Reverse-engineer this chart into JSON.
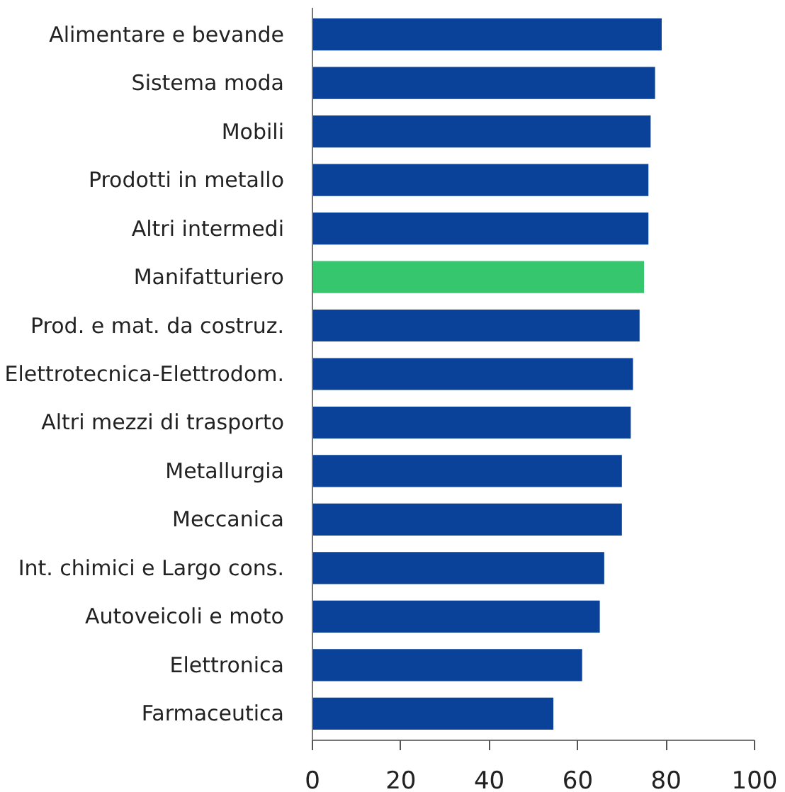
{
  "chart_data": {
    "type": "bar",
    "orientation": "horizontal",
    "categories": [
      "Alimentare e bevande",
      "Sistema moda",
      "Mobili",
      "Prodotti in metallo",
      "Altri intermedi",
      "Manifatturiero",
      "Prod. e mat. da costruz.",
      "Elettrotecnica-Elettrodom.",
      "Altri mezzi di trasporto",
      "Metallurgia",
      "Meccanica",
      "Int. chimici e Largo cons.",
      "Autoveicoli e moto",
      "Elettronica",
      "Farmaceutica"
    ],
    "values": [
      79,
      77.5,
      76.5,
      76,
      76,
      75,
      74,
      72.5,
      72,
      70,
      70,
      66,
      65,
      61,
      54.5
    ],
    "colors": [
      "#0a4199",
      "#0a4199",
      "#0a4199",
      "#0a4199",
      "#0a4199",
      "#36c76e",
      "#0a4199",
      "#0a4199",
      "#0a4199",
      "#0a4199",
      "#0a4199",
      "#0a4199",
      "#0a4199",
      "#0a4199",
      "#0a4199"
    ],
    "xlim": [
      0,
      100
    ],
    "xticks": [
      0,
      20,
      40,
      60,
      80,
      100
    ],
    "grid": false
  }
}
